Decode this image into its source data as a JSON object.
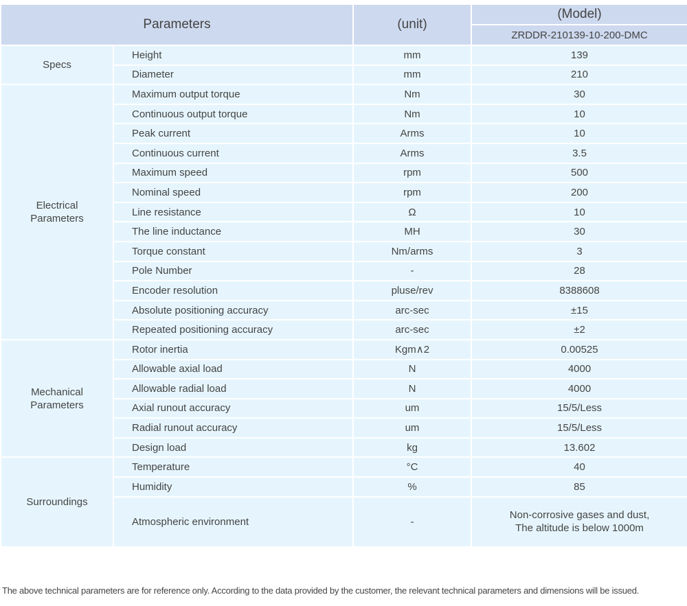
{
  "header": {
    "parameters": "Parameters",
    "unit": "(unit)",
    "model_label": "(Model)",
    "model_name": "ZRDDR-210139-10-200-DMC"
  },
  "groups": [
    {
      "label": "Specs",
      "rows": [
        [
          "Height",
          "mm",
          "139"
        ],
        [
          "Diameter",
          "mm",
          "210"
        ]
      ]
    },
    {
      "label": "Electrical Parameters",
      "rows": [
        [
          "Maximum output torque",
          "Nm",
          "30"
        ],
        [
          "Continuous output torque",
          "Nm",
          "10"
        ],
        [
          "Peak current",
          "Arms",
          "10"
        ],
        [
          "Continuous current",
          "Arms",
          "3.5"
        ],
        [
          "Maximum speed",
          "rpm",
          "500"
        ],
        [
          "Nominal speed",
          "rpm",
          "200"
        ],
        [
          "Line resistance",
          "Ω",
          "10"
        ],
        [
          "The line inductance",
          "MH",
          "30"
        ],
        [
          "Torque constant",
          "Nm/arms",
          "3"
        ],
        [
          "Pole Number",
          "-",
          "28"
        ],
        [
          "Encoder resolution",
          "pluse/rev",
          "8388608"
        ],
        [
          "Absolute positioning accuracy",
          "arc-sec",
          "±15"
        ],
        [
          "Repeated positioning accuracy",
          "arc-sec",
          "±2"
        ]
      ]
    },
    {
      "label": "Mechanical Parameters",
      "rows": [
        [
          "Rotor inertia",
          "Kgm∧2",
          "0.00525"
        ],
        [
          "Allowable axial load",
          "N",
          "4000"
        ],
        [
          "Allowable radial load",
          "N",
          "4000"
        ],
        [
          "Axial runout accuracy",
          "um",
          "15/5/Less"
        ],
        [
          "Radial runout accuracy",
          "um",
          "15/5/Less"
        ],
        [
          "Design load",
          "kg",
          "13.602"
        ]
      ]
    },
    {
      "label": "Surroundings",
      "rows": [
        [
          "Temperature",
          "°C",
          "40"
        ],
        [
          "Humidity",
          "%",
          "85"
        ],
        [
          "Atmospheric environment",
          "-",
          "Non-corrosive gases and dust,\nThe altitude is below 1000m"
        ]
      ]
    }
  ],
  "footnote": "The above technical parameters are for reference only. According to the data provided by the customer, the relevant technical parameters and dimensions will be issued."
}
